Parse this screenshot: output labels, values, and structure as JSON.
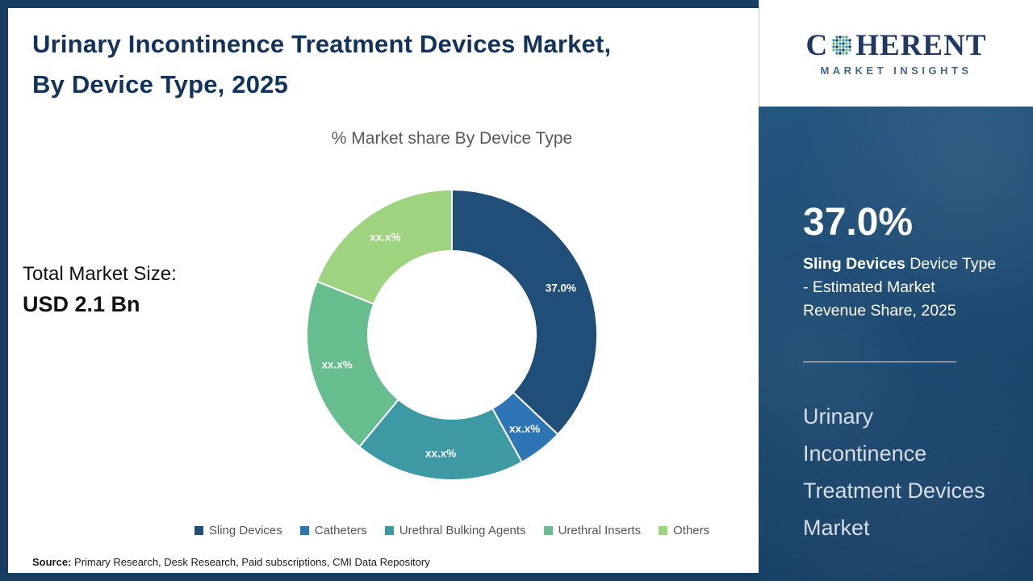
{
  "header": {
    "title_line1": "Urinary Incontinence Treatment Devices Market,",
    "title_line2": "By Device Type, 2025"
  },
  "chart_data": {
    "type": "pie",
    "donut": true,
    "title": "% Market share By Device Type",
    "categories": [
      "Sling Devices",
      "Catheters",
      "Urethral Bulking Agents",
      "Urethral Inserts",
      "Others"
    ],
    "values": [
      37.0,
      5.0,
      19.0,
      20.0,
      19.0
    ],
    "labels": [
      "37.0%",
      "xx.x%",
      "xx.x%",
      "xx.x%",
      "xx.x%"
    ],
    "colors": [
      "#1f4e79",
      "#2e75b6",
      "#3d9aa4",
      "#66bd8e",
      "#9ed380"
    ],
    "legend_position": "bottom"
  },
  "total_market": {
    "label": "Total Market Size:",
    "value": "USD 2.1 Bn"
  },
  "source": {
    "label": "Source:",
    "text": " Primary Research, Desk Research, Paid subscriptions, CMI Data Repository"
  },
  "sidebar": {
    "stat_value": "37.0%",
    "stat_bold": "Sling Devices",
    "stat_rest": " Device Type - Estimated Market Revenue Share, 2025",
    "market_name": "Urinary Incontinence Treatment Devices Market"
  },
  "logo": {
    "word_start": "C",
    "word_end": "HERENT",
    "subtitle": "MARKET INSIGHTS",
    "sphere_colors": [
      "#2e8fa8",
      "#1f3864",
      "#6fbf73",
      "#57a0b5"
    ]
  }
}
